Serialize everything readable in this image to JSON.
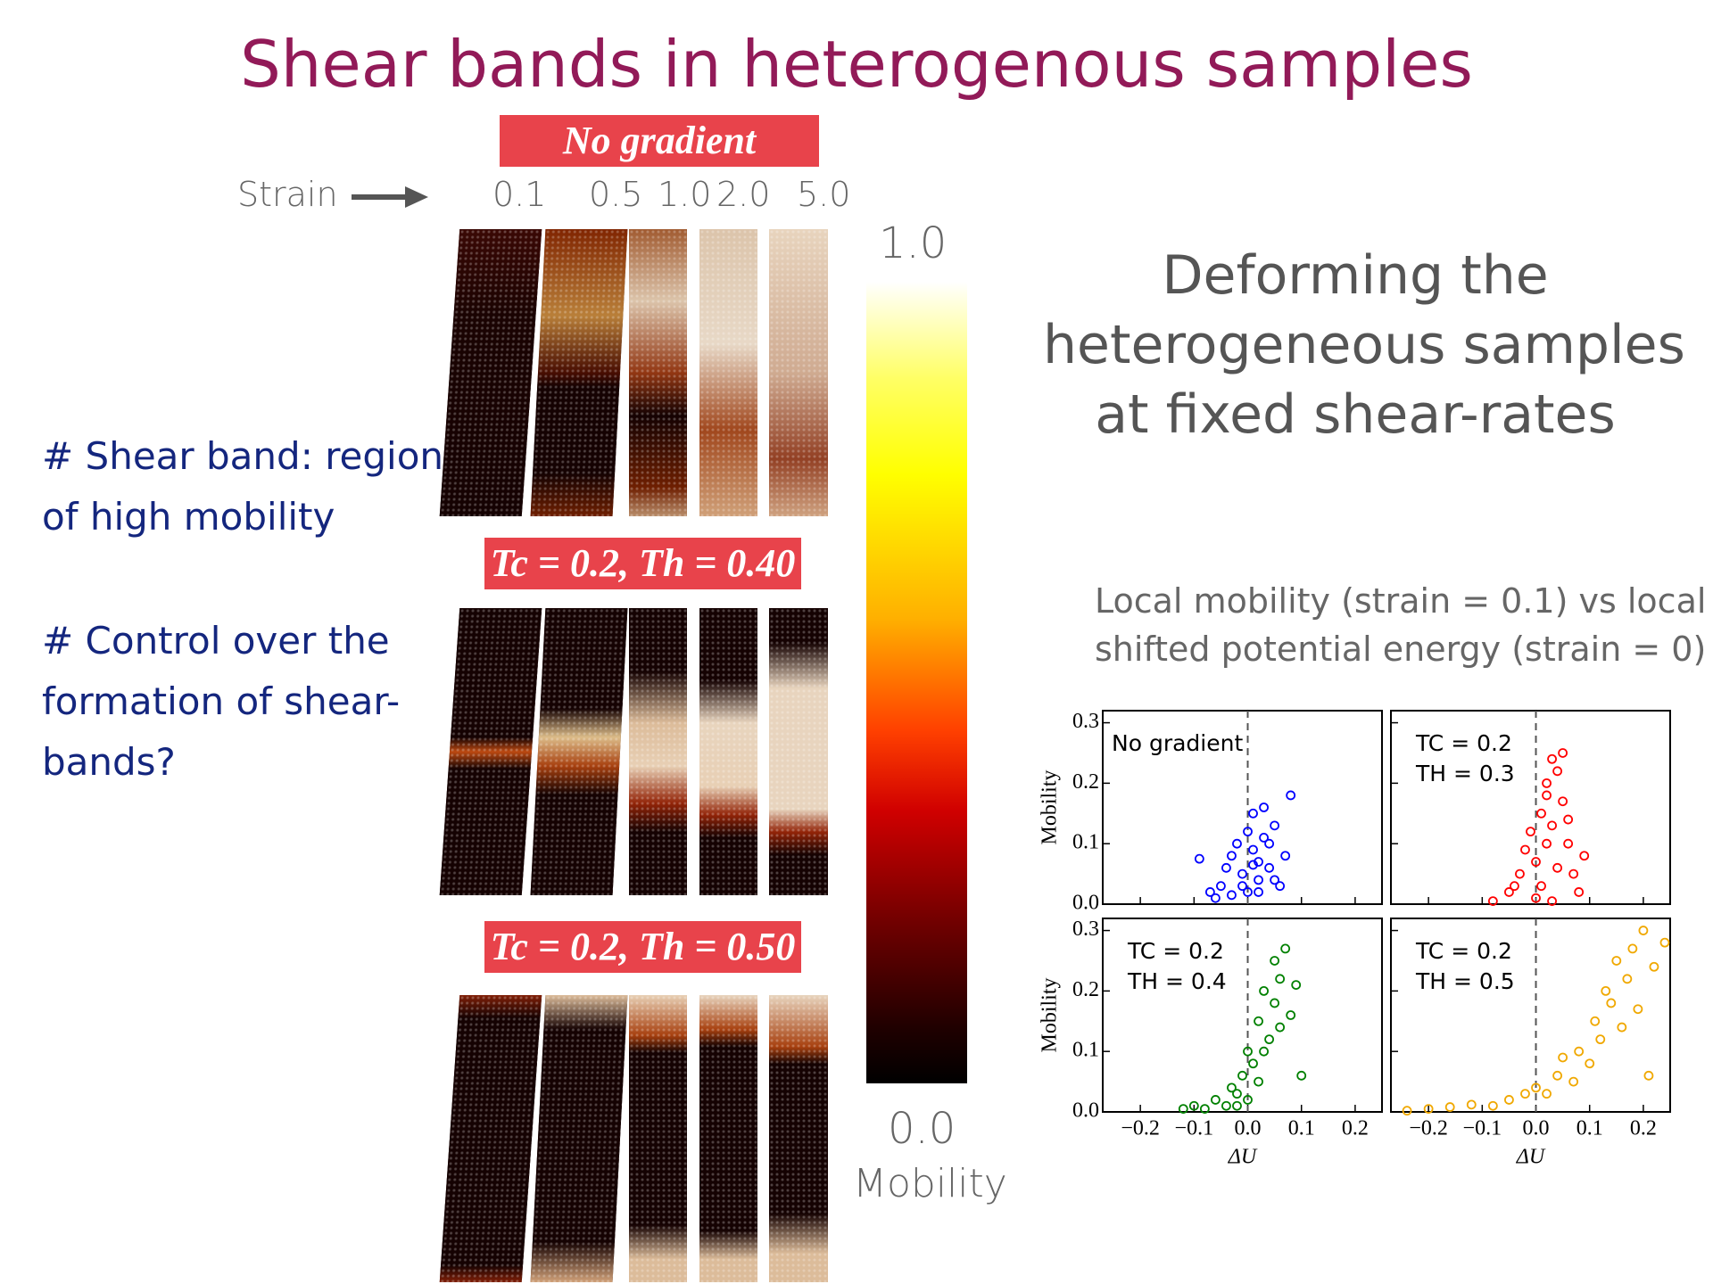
{
  "title": "Shear bands in heterogenous samples",
  "strain_label": "Strain",
  "strains": [
    "0.1",
    "0.5",
    "1.0",
    "2.0",
    "5.0"
  ],
  "row_labels": [
    "No gradient",
    "Tc = 0.2, Th = 0.40",
    "Tc = 0.2, Th = 0.50"
  ],
  "colorbar": {
    "max": "1.0",
    "min": "0.0",
    "label": "Mobility"
  },
  "bullets": [
    [
      "# Shear band: region",
      "of high mobility"
    ],
    [
      "# Control over the",
      "formation of shear-",
      "bands?"
    ]
  ],
  "subtitle": [
    "Deforming the",
    "heterogeneous samples",
    "at fixed shear-rates"
  ],
  "plots_caption": [
    "Local mobility (strain = 0.1) vs local",
    "shifted potential energy (strain = 0)"
  ],
  "chart_data": [
    {
      "type": "scatter",
      "annotation": [
        "No gradient"
      ],
      "ylabel": "Mobility",
      "color": "#0000ff",
      "xlim": [
        -0.27,
        0.25
      ],
      "ylim": [
        0,
        0.32
      ],
      "vline": 0,
      "yticks": [
        {
          "value": 0,
          "label": "0.0"
        },
        0.1,
        0.2,
        0.3
      ],
      "x": [
        -0.09,
        -0.07,
        -0.05,
        -0.04,
        -0.03,
        -0.02,
        -0.01,
        0,
        0,
        0.01,
        0.02,
        0.03,
        0.04,
        0.05,
        0.06,
        0.07,
        -0.03,
        0.01,
        0.02,
        0.08,
        0.02,
        -0.01,
        0.04,
        0.05,
        -0.06,
        0.01,
        0.03
      ],
      "y": [
        0.075,
        0.02,
        0.03,
        0.06,
        0.08,
        0.1,
        0.05,
        0.12,
        0.02,
        0.09,
        0.04,
        0.11,
        0.06,
        0.13,
        0.03,
        0.08,
        0.015,
        0.15,
        0.07,
        0.18,
        0.02,
        0.03,
        0.1,
        0.04,
        0.01,
        0.065,
        0.16
      ]
    },
    {
      "type": "scatter",
      "annotation": [
        "TC = 0.2",
        "TH = 0.3"
      ],
      "color": "#ff0000",
      "xlim": [
        -0.27,
        0.25
      ],
      "ylim": [
        0,
        0.32
      ],
      "vline": 0,
      "x": [
        -0.08,
        -0.05,
        -0.03,
        -0.02,
        -0.01,
        0,
        0.01,
        0.01,
        0.02,
        0.02,
        0.03,
        0.03,
        0.04,
        0.04,
        0.05,
        0.05,
        0.06,
        0.07,
        0.08,
        0.09,
        0,
        0.02,
        0.03,
        -0.04,
        0.06
      ],
      "y": [
        0.005,
        0.02,
        0.05,
        0.09,
        0.12,
        0.07,
        0.15,
        0.03,
        0.2,
        0.1,
        0.24,
        0.13,
        0.22,
        0.06,
        0.17,
        0.25,
        0.1,
        0.05,
        0.02,
        0.08,
        0.01,
        0.18,
        0.005,
        0.03,
        0.14
      ]
    },
    {
      "type": "scatter",
      "annotation": [
        "TC = 0.2",
        "TH = 0.4"
      ],
      "ylabel": "Mobility",
      "xlabel": "ΔU",
      "color": "#008000",
      "xlim": [
        -0.27,
        0.25
      ],
      "ylim": [
        0,
        0.32
      ],
      "vline": 0,
      "xticks": [
        {
          "value": -0.2,
          "label": "−0.2"
        },
        {
          "value": -0.1,
          "label": "−0.1"
        },
        {
          "value": 0,
          "label": "0.0"
        },
        0.1,
        0.2
      ],
      "yticks": [
        {
          "value": 0,
          "label": "0.0"
        },
        0.1,
        0.2,
        0.3
      ],
      "x": [
        -0.12,
        -0.1,
        -0.08,
        -0.06,
        -0.04,
        -0.03,
        -0.02,
        -0.01,
        0,
        0.01,
        0.02,
        0.02,
        0.03,
        0.04,
        0.05,
        0.05,
        0.06,
        0.07,
        0.08,
        0.09,
        0.1,
        0,
        0.03,
        0.06,
        -0.02
      ],
      "y": [
        0.005,
        0.01,
        0.005,
        0.02,
        0.01,
        0.04,
        0.03,
        0.06,
        0.1,
        0.08,
        0.15,
        0.05,
        0.2,
        0.12,
        0.25,
        0.18,
        0.22,
        0.27,
        0.16,
        0.21,
        0.06,
        0.02,
        0.1,
        0.14,
        0.01
      ]
    },
    {
      "type": "scatter",
      "annotation": [
        "TC = 0.2",
        "TH = 0.5"
      ],
      "xlabel": "ΔU",
      "color": "#f0a800",
      "xlim": [
        -0.27,
        0.25
      ],
      "ylim": [
        0,
        0.32
      ],
      "vline": 0,
      "xticks": [
        {
          "value": -0.2,
          "label": "−0.2"
        },
        {
          "value": -0.1,
          "label": "−0.1"
        },
        {
          "value": 0,
          "label": "0.0"
        },
        0.1,
        0.2
      ],
      "x": [
        -0.24,
        -0.2,
        -0.16,
        -0.12,
        -0.08,
        -0.05,
        -0.02,
        0,
        0.02,
        0.04,
        0.05,
        0.07,
        0.08,
        0.1,
        0.11,
        0.12,
        0.13,
        0.14,
        0.15,
        0.16,
        0.17,
        0.18,
        0.19,
        0.2,
        0.21,
        0.22,
        0.24
      ],
      "y": [
        0.002,
        0.005,
        0.008,
        0.012,
        0.01,
        0.02,
        0.03,
        0.04,
        0.03,
        0.06,
        0.09,
        0.05,
        0.1,
        0.08,
        0.15,
        0.12,
        0.2,
        0.18,
        0.25,
        0.14,
        0.22,
        0.27,
        0.17,
        0.3,
        0.06,
        0.24,
        0.28
      ]
    }
  ]
}
